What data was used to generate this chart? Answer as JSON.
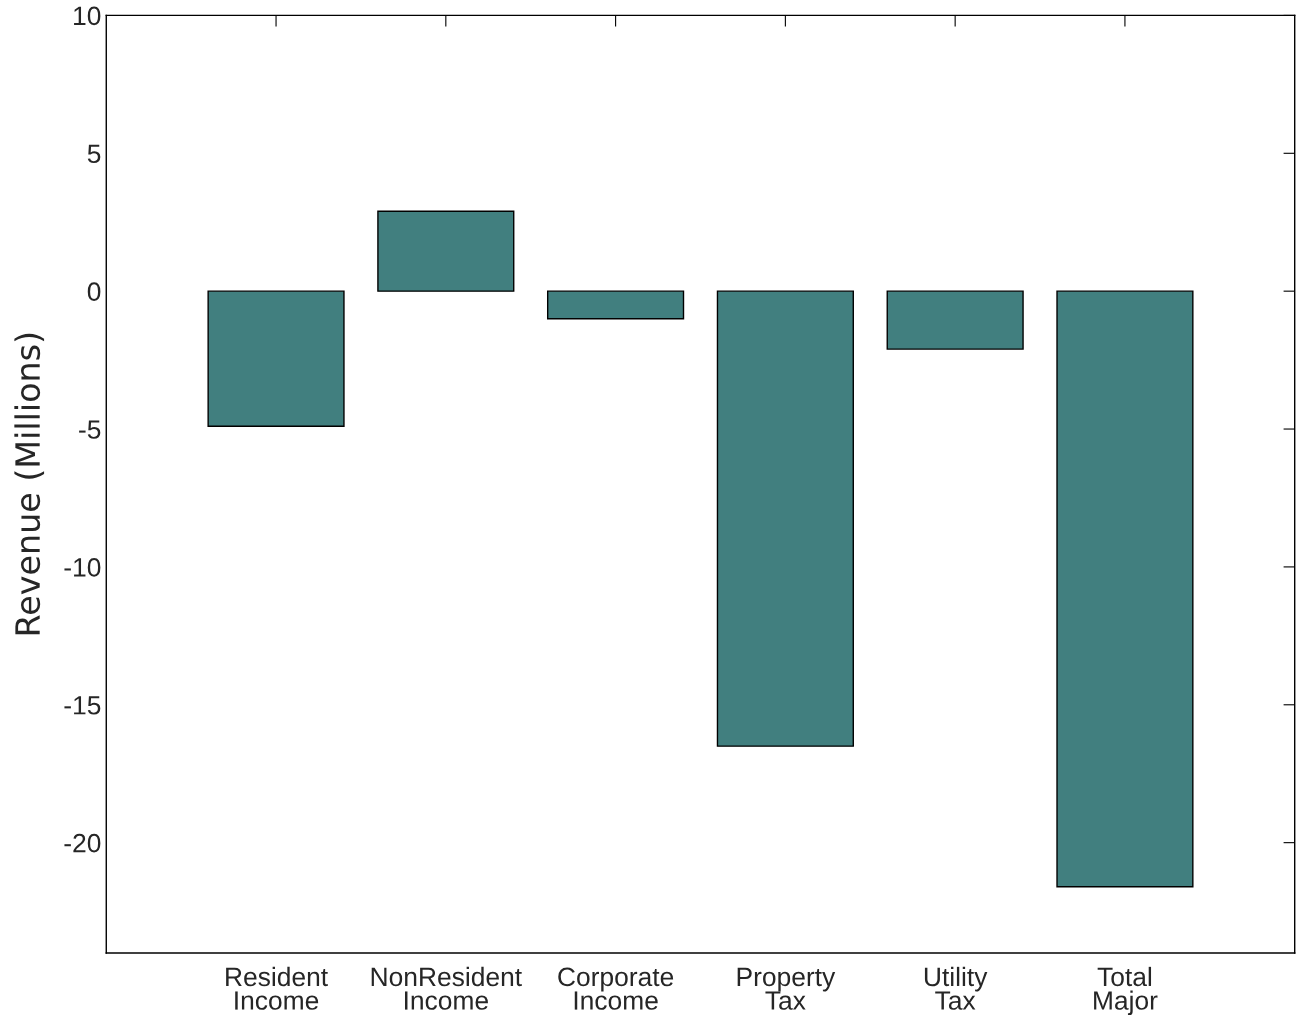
{
  "chart_data": {
    "type": "bar",
    "ylabel": "Revenue (Millions)",
    "categories": [
      "Resident\nIncome",
      "NonResident\nIncome",
      "Corporate\nIncome",
      "Property\nTax",
      "Utility\nTax",
      "Total\nMajor"
    ],
    "values": [
      -4.9,
      2.9,
      -1.0,
      -16.5,
      -2.1,
      -21.6
    ],
    "color": "#417f7f",
    "ylim": [
      -24,
      10
    ],
    "yticks": [
      {
        "value": -20,
        "label": "-20"
      },
      {
        "value": -15,
        "label": "-15"
      },
      {
        "value": -10,
        "label": "-10"
      },
      {
        "value": -5,
        "label": "-5"
      },
      0,
      5,
      10
    ],
    "grid": false
  }
}
